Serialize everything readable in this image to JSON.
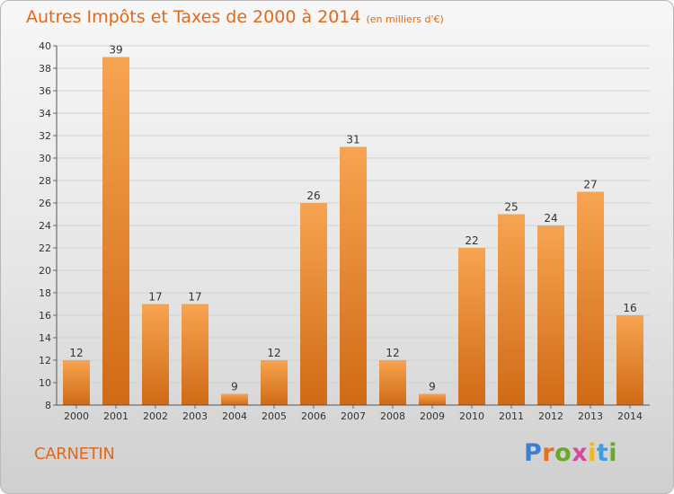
{
  "title": "Autres Impôts et Taxes de 2000 à 2014",
  "unit_note": "(en milliers d'€)",
  "commune": "CARNETIN",
  "logo": {
    "text": "Proxiti",
    "letter_colors": [
      "#3b7fd0",
      "#e8701a",
      "#6aa82a",
      "#d64a9c",
      "#f0b81e",
      "#3b9fe0",
      "#6aa82a"
    ]
  },
  "colors": {
    "bar_top": "#f7a450",
    "bar_bottom": "#d06a16",
    "title": "#e0691a"
  },
  "chart_data": {
    "type": "bar",
    "title": "Autres Impôts et Taxes de 2000 à 2014",
    "categories": [
      "2000",
      "2001",
      "2002",
      "2003",
      "2004",
      "2005",
      "2006",
      "2007",
      "2008",
      "2009",
      "2010",
      "2011",
      "2012",
      "2013",
      "2014"
    ],
    "values": [
      12,
      39,
      17,
      17,
      9,
      12,
      26,
      31,
      12,
      9,
      22,
      25,
      24,
      27,
      16
    ],
    "ylim": [
      8,
      40
    ],
    "yticks": [
      8,
      10,
      12,
      14,
      16,
      18,
      20,
      22,
      24,
      26,
      28,
      30,
      32,
      34,
      36,
      38,
      40
    ],
    "grid": true,
    "legend": "none"
  }
}
